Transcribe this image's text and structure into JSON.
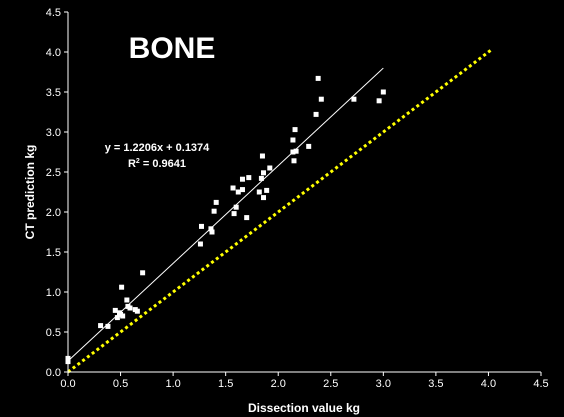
{
  "chart_data": {
    "type": "scatter",
    "title": "BONE",
    "xlabel": "Dissection value kg",
    "ylabel": "CT prediction kg",
    "xlim": [
      0,
      4.5
    ],
    "ylim": [
      0,
      4.5
    ],
    "x_ticks": [
      "0.0",
      "0.5",
      "1.0",
      "1.5",
      "2.0",
      "2.5",
      "3.0",
      "3.5",
      "4.0",
      "4.5"
    ],
    "y_ticks": [
      "0.0",
      "0.5",
      "1.0",
      "1.5",
      "2.0",
      "2.5",
      "3.0",
      "3.5",
      "4.0",
      "4.5"
    ],
    "equation": "y = 1.2206x + 0.1374",
    "r2_prefix": "R",
    "r2_exp": "2",
    "r2_suffix": " = 0.9641",
    "trendline": {
      "slope": 1.2206,
      "intercept": 0.1374,
      "x_range": [
        0,
        3.0
      ]
    },
    "identity_line": {
      "x_range": [
        0,
        4.02
      ]
    },
    "points": [
      [
        0.0,
        0.13
      ],
      [
        0.0,
        0.17
      ],
      [
        0.31,
        0.58
      ],
      [
        0.38,
        0.57
      ],
      [
        0.45,
        0.77
      ],
      [
        0.47,
        0.68
      ],
      [
        0.49,
        0.74
      ],
      [
        0.5,
        0.72
      ],
      [
        0.51,
        1.06
      ],
      [
        0.52,
        0.7
      ],
      [
        0.56,
        0.9
      ],
      [
        0.57,
        0.82
      ],
      [
        0.59,
        0.8
      ],
      [
        0.64,
        0.78
      ],
      [
        0.66,
        0.76
      ],
      [
        0.71,
        1.24
      ],
      [
        1.26,
        1.6
      ],
      [
        1.27,
        1.82
      ],
      [
        1.36,
        1.79
      ],
      [
        1.37,
        1.75
      ],
      [
        1.39,
        2.01
      ],
      [
        1.41,
        2.12
      ],
      [
        1.57,
        2.3
      ],
      [
        1.58,
        1.98
      ],
      [
        1.6,
        2.06
      ],
      [
        1.62,
        2.25
      ],
      [
        1.66,
        2.28
      ],
      [
        1.66,
        2.41
      ],
      [
        1.7,
        1.93
      ],
      [
        1.72,
        2.43
      ],
      [
        1.82,
        2.25
      ],
      [
        1.84,
        2.42
      ],
      [
        1.85,
        2.7
      ],
      [
        1.86,
        2.18
      ],
      [
        1.86,
        2.49
      ],
      [
        1.89,
        2.27
      ],
      [
        1.92,
        2.55
      ],
      [
        2.14,
        2.75
      ],
      [
        2.14,
        2.9
      ],
      [
        2.15,
        2.64
      ],
      [
        2.16,
        3.03
      ],
      [
        2.17,
        2.76
      ],
      [
        2.29,
        2.82
      ],
      [
        2.36,
        3.22
      ],
      [
        2.38,
        3.67
      ],
      [
        2.41,
        3.41
      ],
      [
        2.72,
        3.41
      ],
      [
        2.96,
        3.39
      ],
      [
        3.0,
        3.5
      ]
    ],
    "colors": {
      "background": "#000000",
      "axis": "#ffffff",
      "points": "#ffffff",
      "trendline": "#ffffff",
      "identity_line": "#ffff00"
    },
    "grid": false,
    "legend": "none"
  }
}
